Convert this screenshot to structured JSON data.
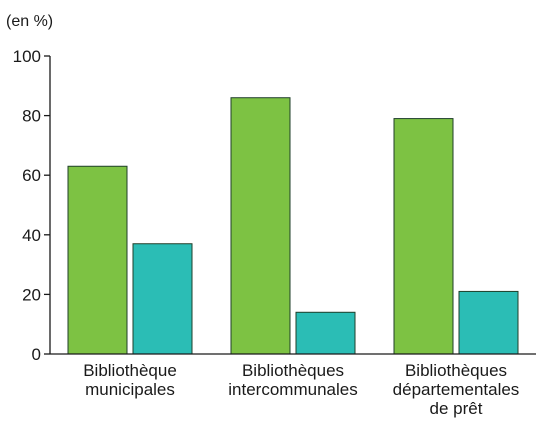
{
  "chart_data": {
    "type": "bar",
    "unit_label": "(en %)",
    "title": "",
    "xlabel": "",
    "ylabel": "",
    "ylim": [
      0,
      100
    ],
    "yticks": [
      0,
      20,
      40,
      60,
      80,
      100
    ],
    "categories": [
      [
        "Bibliothèque",
        "municipales"
      ],
      [
        "Bibliothèques",
        "intercommunales"
      ],
      [
        "Bibliothèques",
        "départementales",
        "de prêt"
      ]
    ],
    "series": [
      {
        "values": [
          63,
          86,
          79
        ],
        "color": "#7dc243"
      },
      {
        "values": [
          37,
          14,
          21
        ],
        "color": "#2bbdb5"
      }
    ],
    "legend": "none",
    "grid": false
  }
}
